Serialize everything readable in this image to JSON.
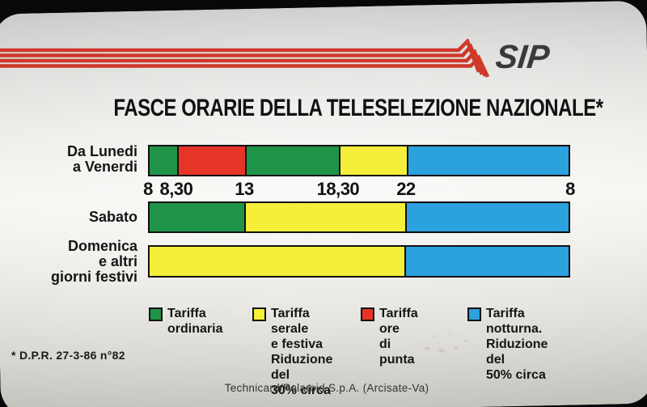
{
  "logo": {
    "text": "SIP"
  },
  "title": "FASCE ORARIE DELLA TELESELEZIONE NAZIONALE*",
  "colors": {
    "green": "#1f9449",
    "red": "#e63428",
    "yellow": "#f5ee3a",
    "blue": "#2ba1dd",
    "stripe_red": "#cf382a",
    "bar_border": "#101010"
  },
  "chart_data": {
    "type": "bar",
    "variant": "horizontal-timeline-stacked",
    "title": "FASCE ORARIE DELLA TELESELEZIONE NAZIONALE*",
    "x_unit": "ora del giorno (8 del mattino alle 8 del giorno dopo)",
    "x_ticks": [
      {
        "label": "8",
        "pos_pct": 0
      },
      {
        "label": "8,30",
        "pos_pct": 6.7
      },
      {
        "label": "13",
        "pos_pct": 22.8
      },
      {
        "label": "18,30",
        "pos_pct": 45.0
      },
      {
        "label": "22",
        "pos_pct": 61.1
      },
      {
        "label": "8",
        "pos_pct": 100
      }
    ],
    "rows": [
      {
        "label": "Da Lunedi\na Venerdi",
        "segments": [
          {
            "from": "8",
            "to": "8,30",
            "tariff": "Tariffa ordinaria",
            "color": "green",
            "width_pct": 6.7
          },
          {
            "from": "8,30",
            "to": "13",
            "tariff": "Tariffa ore di punta",
            "color": "red",
            "width_pct": 16.1
          },
          {
            "from": "13",
            "to": "18,30",
            "tariff": "Tariffa ordinaria",
            "color": "green",
            "width_pct": 22.2
          },
          {
            "from": "18,30",
            "to": "22",
            "tariff": "Tariffa serale e festiva",
            "color": "yellow",
            "width_pct": 16.1
          },
          {
            "from": "22",
            "to": "8",
            "tariff": "Tariffa notturna",
            "color": "blue",
            "width_pct": 38.9
          }
        ]
      },
      {
        "label": "Sabato",
        "segments": [
          {
            "from": "8",
            "to": "13",
            "tariff": "Tariffa ordinaria",
            "color": "green",
            "width_pct": 22.8
          },
          {
            "from": "13",
            "to": "22",
            "tariff": "Tariffa serale e festiva",
            "color": "yellow",
            "width_pct": 38.3
          },
          {
            "from": "22",
            "to": "8",
            "tariff": "Tariffa notturna",
            "color": "blue",
            "width_pct": 38.9
          }
        ]
      },
      {
        "label": "Domenica\ne altri\ngiorni festivi",
        "segments": [
          {
            "from": "8",
            "to": "22",
            "tariff": "Tariffa serale e festiva",
            "color": "yellow",
            "width_pct": 61.1
          },
          {
            "from": "22",
            "to": "8",
            "tariff": "Tariffa notturna",
            "color": "blue",
            "width_pct": 38.9
          }
        ]
      }
    ],
    "legend": [
      {
        "color": "green",
        "label": "Tariffa\nordinaria"
      },
      {
        "color": "yellow",
        "label": "Tariffa serale\ne festiva\nRiduzione del\n30% circa"
      },
      {
        "color": "red",
        "label": "Tariffa ore\ndi punta"
      },
      {
        "color": "blue",
        "label": "Tariffa\nnotturna.\nRiduzione del\n50% circa"
      }
    ],
    "legend_position": "bottom",
    "grid": false
  },
  "footnote": "* D.P.R. 27-3-86 n°82",
  "credit": "Technicard/Polaroid S.p.A. (Arcisate-Va)"
}
